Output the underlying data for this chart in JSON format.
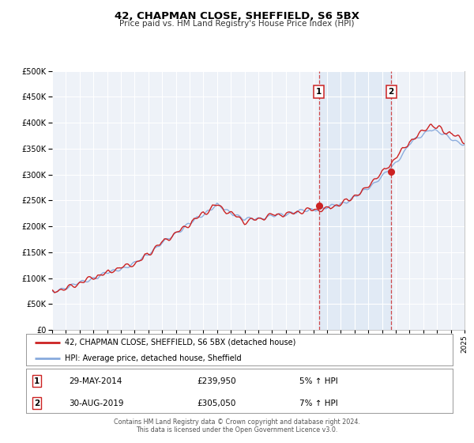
{
  "title1": "42, CHAPMAN CLOSE, SHEFFIELD, S6 5BX",
  "title2": "Price paid vs. HM Land Registry's House Price Index (HPI)",
  "xlim": [
    1995,
    2025
  ],
  "ylim": [
    0,
    500000
  ],
  "yticks": [
    0,
    50000,
    100000,
    150000,
    200000,
    250000,
    300000,
    350000,
    400000,
    450000,
    500000
  ],
  "xticks": [
    1995,
    1996,
    1997,
    1998,
    1999,
    2000,
    2001,
    2002,
    2003,
    2004,
    2005,
    2006,
    2007,
    2008,
    2009,
    2010,
    2011,
    2012,
    2013,
    2014,
    2015,
    2016,
    2017,
    2018,
    2019,
    2020,
    2021,
    2022,
    2023,
    2024,
    2025
  ],
  "hpi_color": "#88aadd",
  "price_color": "#cc2222",
  "marker1_date": 2014.41,
  "marker1_price": 239950,
  "marker2_date": 2019.66,
  "marker2_price": 305050,
  "shade_color": "#dce8f5",
  "legend_label1": "42, CHAPMAN CLOSE, SHEFFIELD, S6 5BX (detached house)",
  "legend_label2": "HPI: Average price, detached house, Sheffield",
  "note1_num": "1",
  "note1_date": "29-MAY-2014",
  "note1_price": "£239,950",
  "note1_hpi": "5% ↑ HPI",
  "note2_num": "2",
  "note2_date": "30-AUG-2019",
  "note2_price": "£305,050",
  "note2_hpi": "7% ↑ HPI",
  "footer1": "Contains HM Land Registry data © Crown copyright and database right 2024.",
  "footer2": "This data is licensed under the Open Government Licence v3.0.",
  "bg_color": "#eef2f8"
}
